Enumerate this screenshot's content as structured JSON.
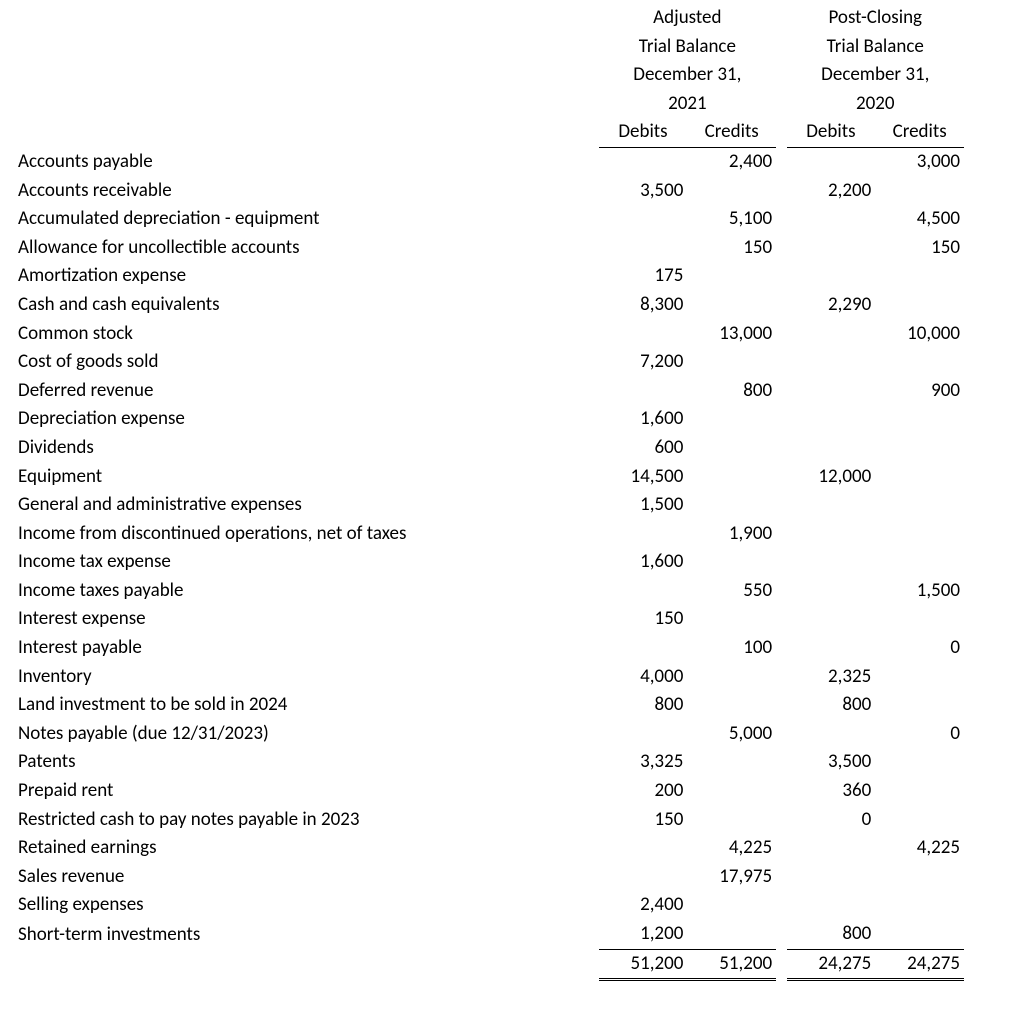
{
  "headers": {
    "col1": {
      "line1": "Adjusted",
      "line2": "Trial Balance",
      "line3": "December 31,",
      "line4": "2021"
    },
    "col2": {
      "line1": "Post-Closing",
      "line2": "Trial Balance",
      "line3": "December 31,",
      "line4": "2020"
    },
    "sub": {
      "debits": "Debits",
      "credits": "Credits"
    }
  },
  "rows": [
    {
      "account": "Accounts payable",
      "d1": "",
      "c1": "2,400",
      "d2": "",
      "c2": "3,000"
    },
    {
      "account": "Accounts receivable",
      "d1": "3,500",
      "c1": "",
      "d2": "2,200",
      "c2": ""
    },
    {
      "account": "Accumulated depreciation - equipment",
      "d1": "",
      "c1": "5,100",
      "d2": "",
      "c2": "4,500"
    },
    {
      "account": "Allowance for uncollectible accounts",
      "d1": "",
      "c1": "150",
      "d2": "",
      "c2": "150"
    },
    {
      "account": "Amortization expense",
      "d1": "175",
      "c1": "",
      "d2": "",
      "c2": ""
    },
    {
      "account": "Cash and cash equivalents",
      "d1": "8,300",
      "c1": "",
      "d2": "2,290",
      "c2": ""
    },
    {
      "account": "Common stock",
      "d1": "",
      "c1": "13,000",
      "d2": "",
      "c2": "10,000"
    },
    {
      "account": "Cost of goods sold",
      "d1": "7,200",
      "c1": "",
      "d2": "",
      "c2": ""
    },
    {
      "account": "Deferred revenue",
      "d1": "",
      "c1": "800",
      "d2": "",
      "c2": "900"
    },
    {
      "account": "Depreciation expense",
      "d1": "1,600",
      "c1": "",
      "d2": "",
      "c2": ""
    },
    {
      "account": "Dividends",
      "d1": "600",
      "c1": "",
      "d2": "",
      "c2": ""
    },
    {
      "account": "Equipment",
      "d1": "14,500",
      "c1": "",
      "d2": "12,000",
      "c2": ""
    },
    {
      "account": "General and administrative expenses",
      "d1": "1,500",
      "c1": "",
      "d2": "",
      "c2": ""
    },
    {
      "account": "Income from discontinued operations, net of taxes",
      "d1": "",
      "c1": "1,900",
      "d2": "",
      "c2": ""
    },
    {
      "account": "Income tax expense",
      "d1": "1,600",
      "c1": "",
      "d2": "",
      "c2": ""
    },
    {
      "account": "Income taxes payable",
      "d1": "",
      "c1": "550",
      "d2": "",
      "c2": "1,500"
    },
    {
      "account": "Interest expense",
      "d1": "150",
      "c1": "",
      "d2": "",
      "c2": ""
    },
    {
      "account": "Interest payable",
      "d1": "",
      "c1": "100",
      "d2": "",
      "c2": "0"
    },
    {
      "account": "Inventory",
      "d1": "4,000",
      "c1": "",
      "d2": "2,325",
      "c2": ""
    },
    {
      "account": "Land investment to be sold in 2024",
      "d1": "800",
      "c1": "",
      "d2": "800",
      "c2": ""
    },
    {
      "account": "Notes payable (due 12/31/2023)",
      "d1": "",
      "c1": "5,000",
      "d2": "",
      "c2": "0"
    },
    {
      "account": "Patents",
      "d1": "3,325",
      "c1": "",
      "d2": "3,500",
      "c2": ""
    },
    {
      "account": "Prepaid rent",
      "d1": "200",
      "c1": "",
      "d2": "360",
      "c2": ""
    },
    {
      "account": "Restricted cash to pay notes payable in 2023",
      "d1": "150",
      "c1": "",
      "d2": "0",
      "c2": ""
    },
    {
      "account": "Retained earnings",
      "d1": "",
      "c1": "4,225",
      "d2": "",
      "c2": "4,225"
    },
    {
      "account": "Sales revenue",
      "d1": "",
      "c1": "17,975",
      "d2": "",
      "c2": ""
    },
    {
      "account": "Selling expenses",
      "d1": "2,400",
      "c1": "",
      "d2": "",
      "c2": ""
    },
    {
      "account": "Short-term investments",
      "d1": "1,200",
      "c1": "",
      "d2": "800",
      "c2": ""
    }
  ],
  "totals": {
    "d1": "51,200",
    "c1": "51,200",
    "d2": "24,275",
    "c2": "24,275"
  },
  "style": {
    "font_family": "Calibri",
    "font_size_pt": 14,
    "text_color": "#000000",
    "background_color": "#ffffff",
    "border_color": "#000000"
  }
}
